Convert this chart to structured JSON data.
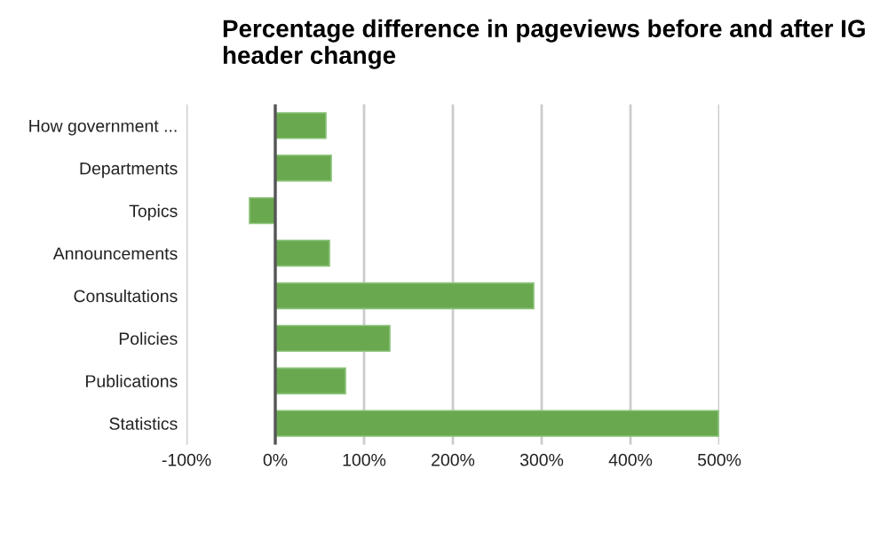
{
  "chart_data": {
    "type": "bar",
    "orientation": "horizontal",
    "title": "Percentage difference in pageviews before and after IG header change",
    "categories": [
      "How government ...",
      "Departments",
      "Topics",
      "Announcements",
      "Consultations",
      "Policies",
      "Publications",
      "Statistics"
    ],
    "values": [
      57,
      63,
      -29,
      61,
      291,
      129,
      79,
      499
    ],
    "color": "#6aa84f",
    "xlim": [
      -100,
      500
    ],
    "xticks": [
      {
        "value": -100,
        "label": "-100%"
      },
      {
        "value": 0,
        "label": "0%"
      },
      {
        "value": 100,
        "label": "100%"
      },
      {
        "value": 200,
        "label": "200%"
      },
      {
        "value": 300,
        "label": "300%"
      },
      {
        "value": 400,
        "label": "400%"
      },
      {
        "value": 500,
        "label": "500%"
      }
    ],
    "grid": "x",
    "legend": false
  }
}
